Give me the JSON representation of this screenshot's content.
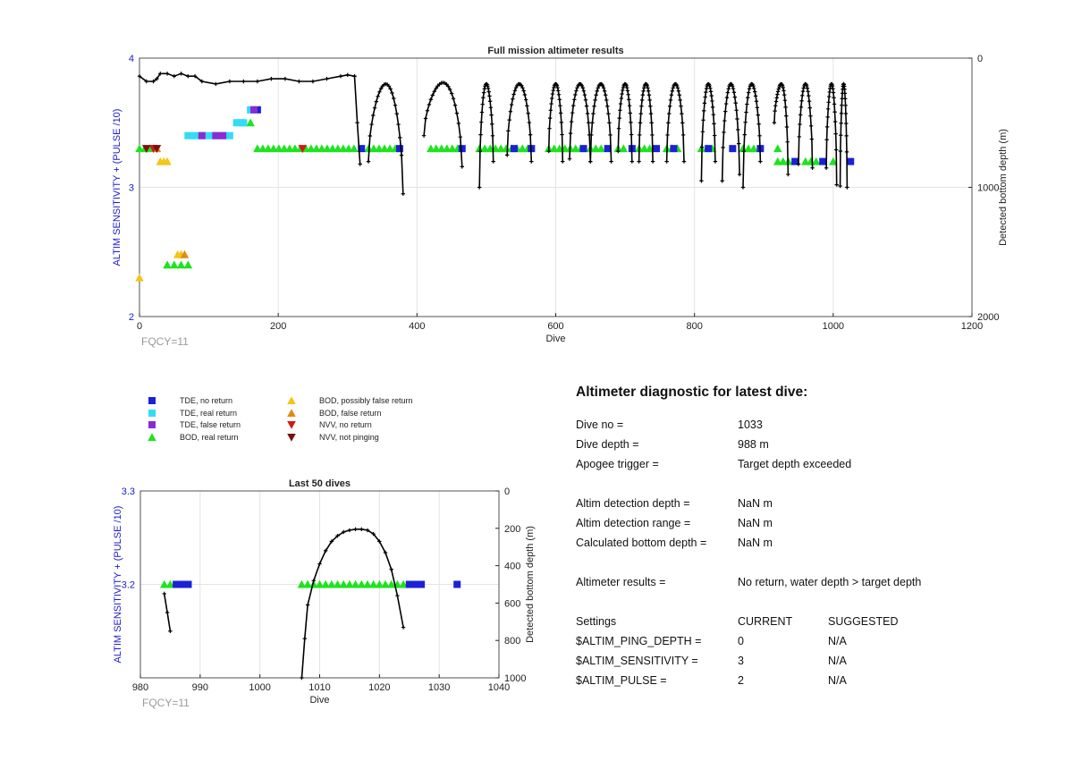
{
  "colors": {
    "tde_no_return": "#1b21d6",
    "tde_real_return": "#33dcf5",
    "tde_false_return": "#8a2bd6",
    "bod_real_return": "#1ee31e",
    "bod_possibly_false": "#f5c518",
    "bod_false_return": "#e08a10",
    "nvv_no_return": "#d41818",
    "nvv_not_pinging": "#7a1010",
    "profile": "#000000",
    "left_axis": "#1a1acc",
    "grid": "#e4e4e4",
    "fqcy": "#9a9a9a"
  },
  "legend": [
    {
      "key": "tde_no_return",
      "label": "TDE, no return",
      "marker": "square"
    },
    {
      "key": "tde_real_return",
      "label": "TDE, real return",
      "marker": "square"
    },
    {
      "key": "tde_false_return",
      "label": "TDE, false return",
      "marker": "square"
    },
    {
      "key": "bod_real_return",
      "label": "BOD, real return",
      "marker": "triangle-up"
    },
    {
      "key": "bod_possibly_false",
      "label": "BOD, possibly false return",
      "marker": "triangle-up"
    },
    {
      "key": "bod_false_return",
      "label": "BOD, false return",
      "marker": "triangle-up"
    },
    {
      "key": "nvv_no_return",
      "label": "NVV, no return",
      "marker": "triangle-down"
    },
    {
      "key": "nvv_not_pinging",
      "label": "NVV, not pinging",
      "marker": "triangle-down"
    }
  ],
  "chart_data": [
    {
      "type": "scatter",
      "title": "Full mission altimeter results",
      "xlabel": "Dive",
      "ylabel_left": "ALTIM SENSITIVITY + (PULSE /10)",
      "ylabel_right": "Detected bottom depth (m)",
      "xlim": [
        0,
        1200
      ],
      "ylim_left": [
        2,
        4
      ],
      "ylim_right_reversed": [
        0,
        2000
      ],
      "xticks": [
        0,
        200,
        400,
        600,
        800,
        1000,
        1200
      ],
      "yticks_left": [
        2,
        3,
        4
      ],
      "yticks_right": [
        0,
        1000,
        2000
      ],
      "grid": true,
      "annotation": "FQCY=11",
      "series": [
        {
          "key": "bod_real_return",
          "segments": [
            [
              0,
              20,
              3.3
            ],
            [
              170,
              310,
              3.3
            ],
            [
              330,
              370,
              3.3
            ],
            [
              420,
              460,
              3.3
            ],
            [
              490,
              560,
              3.3
            ],
            [
              590,
              640,
              3.3
            ],
            [
              650,
              670,
              3.3
            ],
            [
              690,
              700,
              3.3
            ],
            [
              720,
              740,
              3.3
            ],
            [
              760,
              780,
              3.3
            ],
            [
              810,
              830,
              3.3
            ],
            [
              870,
              890,
              3.3
            ],
            [
              920,
              925,
              3.3
            ],
            [
              920,
              940,
              3.2
            ],
            [
              960,
              980,
              3.2
            ],
            [
              1000,
              1005,
              3.2
            ]
          ],
          "points": [
            [
              40,
              2.4
            ],
            [
              50,
              2.4
            ],
            [
              60,
              2.4
            ],
            [
              70,
              2.4
            ],
            [
              60,
              2.48
            ],
            [
              150,
              3.5
            ],
            [
              160,
              3.5
            ]
          ]
        },
        {
          "key": "tde_no_return",
          "points": [
            [
              320,
              3.3
            ],
            [
              375,
              3.3
            ],
            [
              465,
              3.3
            ],
            [
              540,
              3.3
            ],
            [
              565,
              3.3
            ],
            [
              640,
              3.3
            ],
            [
              675,
              3.3
            ],
            [
              710,
              3.3
            ],
            [
              745,
              3.3
            ],
            [
              770,
              3.3
            ],
            [
              820,
              3.3
            ],
            [
              855,
              3.3
            ],
            [
              895,
              3.3
            ],
            [
              945,
              3.2
            ],
            [
              985,
              3.2
            ],
            [
              1025,
              3.2
            ],
            [
              170,
              3.6
            ]
          ]
        },
        {
          "key": "tde_real_return",
          "points": [
            [
              70,
              3.4
            ],
            [
              80,
              3.4
            ],
            [
              90,
              3.4
            ],
            [
              100,
              3.4
            ],
            [
              110,
              3.4
            ],
            [
              120,
              3.4
            ],
            [
              130,
              3.4
            ],
            [
              140,
              3.5
            ],
            [
              145,
              3.5
            ],
            [
              150,
              3.5
            ],
            [
              160,
              3.6
            ],
            [
              165,
              3.6
            ]
          ]
        },
        {
          "key": "tde_false_return",
          "points": [
            [
              90,
              3.4
            ],
            [
              110,
              3.4
            ],
            [
              120,
              3.4
            ],
            [
              165,
              3.6
            ]
          ]
        },
        {
          "key": "bod_possibly_false",
          "points": [
            [
              0,
              2.3
            ],
            [
              30,
              3.2
            ],
            [
              35,
              3.2
            ],
            [
              40,
              3.2
            ],
            [
              55,
              2.48
            ],
            [
              60,
              2.48
            ]
          ]
        },
        {
          "key": "bod_false_return",
          "points": [
            [
              25,
              3.3
            ],
            [
              65,
              2.48
            ]
          ]
        },
        {
          "key": "nvv_no_return",
          "points": [
            [
              20,
              3.3
            ],
            [
              235,
              3.3
            ]
          ]
        },
        {
          "key": "nvv_not_pinging",
          "points": [
            [
              10,
              3.3
            ],
            [
              25,
              3.3
            ]
          ]
        }
      ],
      "depth_profile": {
        "units": "m",
        "plateau": [
          [
            0,
            140
          ],
          [
            10,
            180
          ],
          [
            20,
            180
          ],
          [
            25,
            160
          ],
          [
            30,
            120
          ],
          [
            40,
            120
          ],
          [
            50,
            140
          ],
          [
            60,
            120
          ],
          [
            70,
            140
          ],
          [
            80,
            140
          ],
          [
            90,
            180
          ],
          [
            110,
            200
          ],
          [
            130,
            180
          ],
          [
            150,
            180
          ],
          [
            170,
            180
          ],
          [
            190,
            160
          ],
          [
            210,
            160
          ],
          [
            230,
            180
          ],
          [
            250,
            180
          ],
          [
            270,
            160
          ],
          [
            290,
            140
          ],
          [
            300,
            130
          ],
          [
            310,
            140
          ]
        ],
        "tail": [
          [
            310,
            140
          ],
          [
            314,
            500
          ],
          [
            318,
            820
          ]
        ],
        "arches": [
          [
            330,
            380,
            800,
            1050,
            200
          ],
          [
            410,
            465,
            600,
            840,
            190
          ],
          [
            490,
            510,
            1000,
            800,
            200
          ],
          [
            530,
            565,
            750,
            800,
            200
          ],
          [
            590,
            610,
            720,
            800,
            200
          ],
          [
            620,
            650,
            780,
            800,
            200
          ],
          [
            650,
            680,
            800,
            800,
            200
          ],
          [
            690,
            710,
            720,
            800,
            200
          ],
          [
            720,
            740,
            800,
            800,
            200
          ],
          [
            760,
            785,
            800,
            800,
            200
          ],
          [
            810,
            830,
            950,
            800,
            200
          ],
          [
            840,
            865,
            950,
            900,
            200
          ],
          [
            870,
            895,
            1000,
            800,
            200
          ],
          [
            915,
            935,
            500,
            900,
            200
          ],
          [
            950,
            970,
            820,
            850,
            200
          ],
          [
            990,
            1005,
            850,
            980,
            200
          ],
          [
            1010,
            1020,
            990,
            1000,
            200
          ]
        ]
      }
    },
    {
      "type": "scatter",
      "title": "Last 50 dives",
      "xlabel": "Dive",
      "ylabel_left": "ALTIM SENSITIVITY + (PULSE /10)",
      "ylabel_right": "Detected bottom depth (m)",
      "xlim": [
        980,
        1040
      ],
      "ylim_left": [
        3.1,
        3.3
      ],
      "ylim_right_reversed": [
        0,
        1000
      ],
      "xticks": [
        980,
        990,
        1000,
        1010,
        1020,
        1030,
        1040
      ],
      "yticks_left": [
        3.2,
        3.3
      ],
      "yticks_right": [
        0,
        200,
        400,
        600,
        800,
        1000
      ],
      "grid": true,
      "annotation": "FQCY=11",
      "series": [
        {
          "key": "bod_real_return",
          "points": [
            [
              984,
              3.2
            ],
            [
              985,
              3.2
            ],
            [
              1007,
              3.2
            ],
            [
              1008,
              3.2
            ],
            [
              1009,
              3.2
            ],
            [
              1010,
              3.2
            ],
            [
              1011,
              3.2
            ],
            [
              1012,
              3.2
            ],
            [
              1013,
              3.2
            ],
            [
              1014,
              3.2
            ],
            [
              1015,
              3.2
            ],
            [
              1016,
              3.2
            ],
            [
              1017,
              3.2
            ],
            [
              1018,
              3.2
            ],
            [
              1019,
              3.2
            ],
            [
              1020,
              3.2
            ],
            [
              1021,
              3.2
            ],
            [
              1022,
              3.2
            ],
            [
              1023,
              3.2
            ],
            [
              1024,
              3.2
            ]
          ]
        },
        {
          "key": "tde_no_return",
          "points": [
            [
              986,
              3.2
            ],
            [
              987,
              3.2
            ],
            [
              988,
              3.2
            ],
            [
              1025,
              3.2
            ],
            [
              1026,
              3.2
            ],
            [
              1027,
              3.2
            ],
            [
              1033,
              3.2
            ]
          ]
        }
      ],
      "depth_profile": {
        "units": "m",
        "segments": [
          [
            [
              984,
              550
            ],
            [
              984.5,
              650
            ],
            [
              985,
              750
            ]
          ],
          [
            [
              1007,
              1000
            ],
            [
              1007.5,
              790
            ],
            [
              1008,
              610
            ],
            [
              1009,
              480
            ],
            [
              1010,
              390
            ],
            [
              1011,
              320
            ],
            [
              1012,
              270
            ],
            [
              1013,
              240
            ],
            [
              1014,
              220
            ],
            [
              1015,
              210
            ],
            [
              1016,
              205
            ],
            [
              1017,
              205
            ],
            [
              1018,
              210
            ],
            [
              1019,
              230
            ],
            [
              1020,
              270
            ],
            [
              1021,
              330
            ],
            [
              1022,
              420
            ],
            [
              1023,
              560
            ],
            [
              1024,
              730
            ]
          ]
        ]
      }
    }
  ],
  "diagnostic": {
    "title": "Altimeter diagnostic for latest dive:",
    "rows": [
      {
        "label": "Dive no =",
        "value": "1033"
      },
      {
        "label": "Dive depth =",
        "value": "988 m"
      },
      {
        "label": "Apogee trigger =",
        "value": "Target depth exceeded"
      },
      {
        "label": "",
        "value": ""
      },
      {
        "label": "Altim detection depth =",
        "value": "NaN m"
      },
      {
        "label": "Altim detection range =",
        "value": "NaN m"
      },
      {
        "label": "Calculated bottom depth =",
        "value": "NaN m"
      },
      {
        "label": "",
        "value": ""
      },
      {
        "label": "Altimeter results =",
        "value": "No return, water depth > target depth"
      },
      {
        "label": "",
        "value": ""
      }
    ],
    "settings_header": {
      "label": "Settings",
      "current": "CURRENT",
      "suggested": "SUGGESTED"
    },
    "settings": [
      {
        "label": "$ALTIM_PING_DEPTH =",
        "current": "0",
        "suggested": "N/A"
      },
      {
        "label": "$ALTIM_SENSITIVITY =",
        "current": "3",
        "suggested": "N/A"
      },
      {
        "label": "$ALTIM_PULSE =",
        "current": "2",
        "suggested": "N/A"
      }
    ]
  }
}
